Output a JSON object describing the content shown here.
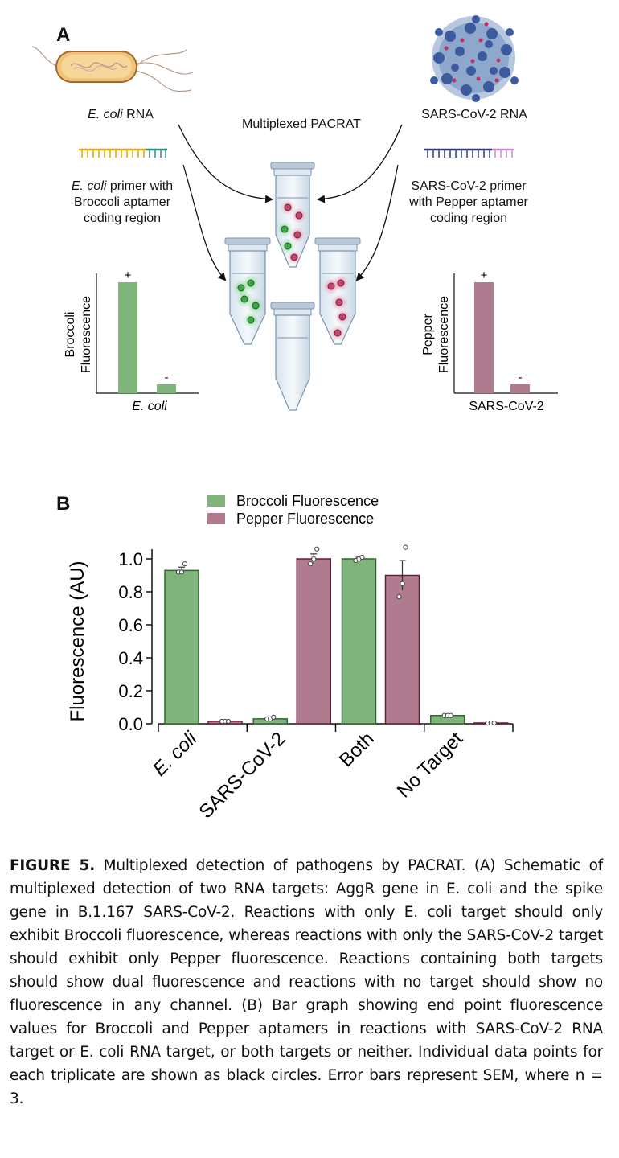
{
  "panel_a": {
    "letter": "A",
    "ecoli_rna_italic": "E. coli",
    "ecoli_rna_rest": " RNA",
    "sars_rna": "SARS-CoV-2 RNA",
    "center_title": "Multiplexed PACRAT",
    "ecoli_primer_italic": "E. coli",
    "ecoli_primer_line1_rest": " primer with",
    "ecoli_primer_line2": "Broccoli aptamer",
    "ecoli_primer_line3": "coding region",
    "sars_primer_line1": "SARS-CoV-2 primer",
    "sars_primer_line2": "with Pepper aptamer",
    "sars_primer_line3": "coding region",
    "left_chart": {
      "ylabel_line1": "Broccoli",
      "ylabel_line2": "Fluorescence",
      "xlabel": "E. coli",
      "plus": "+",
      "minus": "-",
      "color": "#7fb47c"
    },
    "right_chart": {
      "ylabel_line1": "Pepper",
      "ylabel_line2": "Fluorescence",
      "xlabel": "SARS-CoV-2",
      "plus": "+",
      "minus": "-",
      "color": "#b07a8f"
    }
  },
  "panel_b": {
    "letter": "B"
  },
  "chart_data": {
    "type": "bar",
    "title": "",
    "xlabel": "",
    "ylabel": "Fluorescence (AU)",
    "ylim": [
      0,
      1.05
    ],
    "yticks": [
      "0.0",
      "0.2",
      "0.4",
      "0.6",
      "0.8",
      "1.0"
    ],
    "categories": [
      "E. coli",
      "SARS-CoV-2",
      "Both",
      "No Target"
    ],
    "legend_position": "top",
    "series": [
      {
        "name": "Broccoli Fluorescence",
        "color": "#7fb47c",
        "edge": "#2d6a2a",
        "values": [
          0.93,
          0.03,
          1.0,
          0.05
        ],
        "sem": [
          0.02,
          0.01,
          0.01,
          0.003
        ],
        "points": [
          [
            0.92,
            0.92,
            0.97
          ],
          [
            0.03,
            0.03,
            0.04
          ],
          [
            0.99,
            1.0,
            1.01
          ],
          [
            0.05,
            0.05,
            0.05
          ]
        ]
      },
      {
        "name": "Pepper Fluorescence",
        "color": "#b07a8f",
        "edge": "#6a1b3a",
        "values": [
          0.015,
          1.0,
          0.9,
          0.005
        ],
        "sem": [
          0.002,
          0.03,
          0.09,
          0.001
        ],
        "points": [
          [
            0.015,
            0.015,
            0.015
          ],
          [
            0.97,
            1.0,
            1.06
          ],
          [
            0.77,
            0.85,
            1.07
          ],
          [
            0.005,
            0.005,
            0.005
          ]
        ]
      }
    ]
  },
  "caption": {
    "label": "FIGURE 5.",
    "text": " Multiplexed detection of pathogens by PACRAT. (A) Schematic of multiplexed detection of two RNA targets: AggR gene in E. coli and the spike gene in B.1.167 SARS-CoV-2. Reactions with only E. coli target should only exhibit Broccoli fluorescence, whereas reactions with only the SARS-CoV-2 target should exhibit only Pepper fluorescence. Reactions containing both targets should show dual fluorescence and reactions with no target should show no fluorescence in any channel. (B) Bar graph showing end point fluorescence values for Broccoli and Pepper aptamers in reactions with SARS-CoV-2 RNA target or E. coli RNA target, or both targets or neither. Individual data points for each triplicate are shown as black circles. Error bars represent SEM, where n = 3."
  }
}
